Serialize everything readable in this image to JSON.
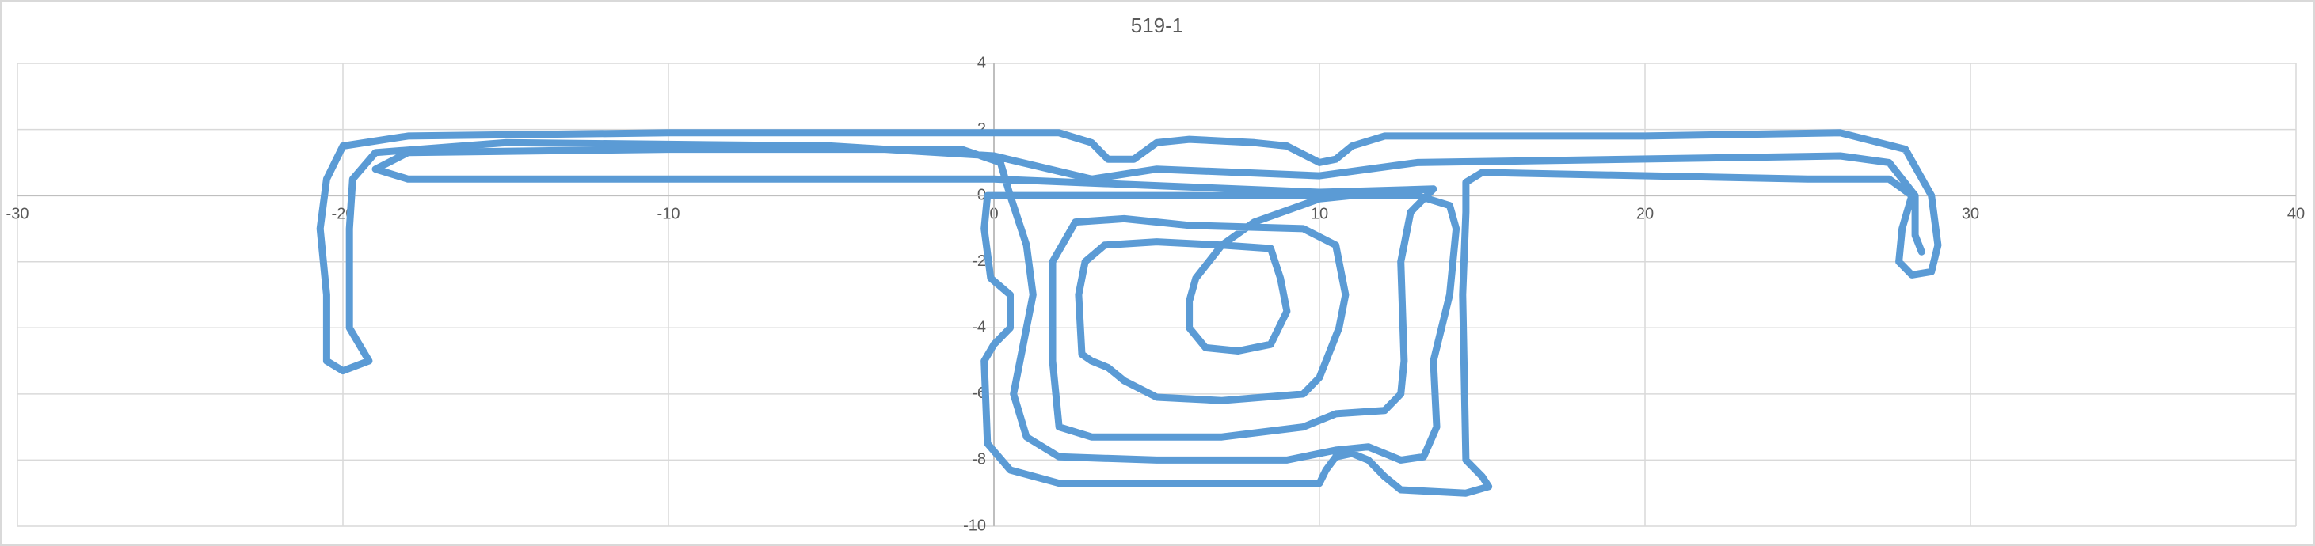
{
  "chart_data": {
    "type": "scatter",
    "title": "519-1",
    "xlim": [
      -30,
      40
    ],
    "xticks": [
      -30,
      -20,
      -10,
      0,
      10,
      20,
      30,
      40
    ],
    "ylim": [
      -10,
      4
    ],
    "yticks": [
      -10,
      -8,
      -6,
      -4,
      -2,
      0,
      2,
      4
    ],
    "grid": true,
    "series": [
      {
        "color": "#5b9bd5",
        "x": [
          28.5,
          28.3,
          28.3,
          27.5,
          26,
          13,
          10,
          5,
          3,
          0,
          -5,
          -15,
          -19,
          -19.7,
          -19.8,
          -19.8,
          -19.2,
          -20,
          -20.5,
          -20.5,
          -20.7,
          -20.5,
          -20,
          -18,
          -10,
          0,
          2,
          3,
          3.5,
          4.3,
          5,
          6,
          8,
          9,
          10,
          10.5,
          11,
          12,
          20,
          26,
          28,
          28.8,
          29,
          28.8,
          28.2,
          27.8,
          27.9,
          28.2,
          27.5,
          25,
          15,
          14.5,
          14.5,
          14.4,
          14.5,
          15,
          15.2,
          14.5,
          12.5,
          12,
          11.5,
          11,
          10.5,
          10.2,
          10,
          5,
          2,
          0.5,
          -0.2,
          -0.3,
          0,
          0.5,
          0.5,
          -0.1,
          -0.3,
          -0.2,
          0,
          5,
          10,
          13,
          14,
          14.2,
          14,
          13.5,
          13.6,
          13.2,
          12.5,
          11.5,
          10.5,
          9,
          5,
          2,
          1,
          0.6,
          0.8,
          1.2,
          1,
          0.5,
          0.2,
          -1,
          -10,
          -18,
          -19,
          -18,
          -10,
          0,
          5,
          10,
          13.5,
          12.8,
          12.5,
          12.6,
          12.5,
          12,
          10.5,
          9.5,
          7,
          3,
          2,
          1.8,
          1.8,
          2.5,
          4,
          6,
          9.5,
          10.5,
          10.8,
          10.6,
          10,
          9.5,
          7,
          5,
          4,
          3.5,
          3,
          2.7,
          2.6,
          2.8,
          3.4,
          5,
          7,
          8.5,
          8.8,
          9,
          8.5,
          7.5,
          6.5,
          6,
          6,
          6.2,
          7,
          8,
          10,
          12
        ],
        "values": [
          -1.7,
          -1.2,
          0,
          1.0,
          1.2,
          1.0,
          0.6,
          0.8,
          0.5,
          1.2,
          1.5,
          1.6,
          1.3,
          0.5,
          -1,
          -4,
          -5.0,
          -5.3,
          -5,
          -3,
          -1,
          0.5,
          1.5,
          1.8,
          1.9,
          1.9,
          1.9,
          1.6,
          1.1,
          1.1,
          1.6,
          1.7,
          1.6,
          1.5,
          1.0,
          1.1,
          1.5,
          1.8,
          1.8,
          1.9,
          1.4,
          0,
          -1.5,
          -2.3,
          -2.4,
          -2,
          -1,
          0,
          0.5,
          0.5,
          0.7,
          0.4,
          -0.5,
          -3,
          -8,
          -8.5,
          -8.8,
          -9,
          -8.9,
          -8.5,
          -8,
          -7.8,
          -7.9,
          -8.3,
          -8.7,
          -8.7,
          -8.7,
          -8.3,
          -7.5,
          -5,
          -4.5,
          -4,
          -3,
          -2.5,
          -1,
          0,
          0,
          0,
          0,
          0,
          -0.3,
          -1,
          -3,
          -5,
          -7,
          -7.9,
          -8,
          -7.6,
          -7.7,
          -8,
          -8,
          -7.9,
          -7.3,
          -6,
          -5,
          -3,
          -1.5,
          0,
          1.0,
          1.4,
          1.4,
          1.3,
          0.8,
          0.5,
          0.5,
          0.5,
          0.3,
          0.1,
          0.2,
          -0.5,
          -2,
          -5,
          -6,
          -6.5,
          -6.6,
          -7,
          -7.3,
          -7.3,
          -7,
          -5,
          -2,
          -0.8,
          -0.7,
          -0.9,
          -1.0,
          -1.5,
          -3,
          -4,
          -5.5,
          -6,
          -6.2,
          -6.1,
          -5.6,
          -5.2,
          -5,
          -4.8,
          -3,
          -2,
          -1.5,
          -1.4,
          -1.5,
          -1.6,
          -2.5,
          -3.5,
          -4.5,
          -4.7,
          -4.6,
          -4,
          -3.2,
          -2.5,
          -1.5,
          -0.8,
          -0.1,
          0.1
        ]
      }
    ]
  }
}
